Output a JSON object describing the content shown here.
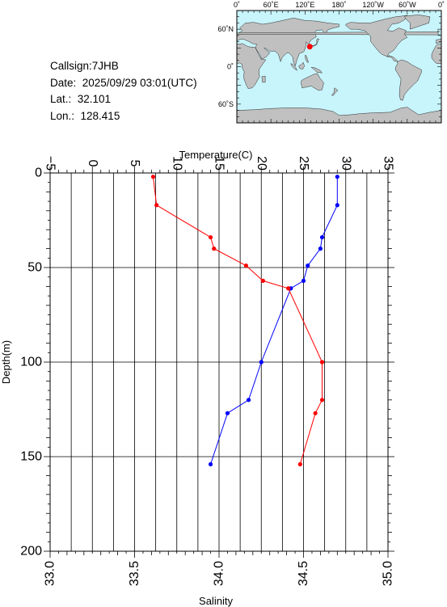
{
  "station": {
    "callsign": "Callsign:7JHB",
    "date": "Date:  2025/09/29 03:01(UTC)",
    "lat": "Lat.:  32.101",
    "lon": "Lon.:  128.415"
  },
  "map": {
    "top_labels": [
      "0˚",
      "60˚E",
      "120˚E",
      "180˚",
      "120˚W",
      "60˚W",
      "0˚"
    ],
    "left_labels": [
      "60˚N",
      "0˚",
      "60˚S"
    ],
    "marker_lat": 32.101,
    "marker_lon": 128.415,
    "ocean_color": "#c8f4fb",
    "land_color": "#c0c0c0",
    "marker_color": "#ff0000"
  },
  "chart_data": {
    "type": "line",
    "title": "",
    "xlabel_top": "Temperature(C)",
    "xlabel_bottom": "Salinity",
    "ylabel": "Depth(m)",
    "temperature_ticks": [
      "−5",
      "0",
      "5",
      "10",
      "15",
      "20",
      "25",
      "30",
      "35"
    ],
    "salinity_ticks": [
      "33.0",
      "33.5",
      "34.0",
      "34.5",
      "35.0"
    ],
    "depth_ticks": [
      "0",
      "50",
      "100",
      "150",
      "200"
    ],
    "temperature_range": [
      -5,
      35
    ],
    "salinity_range": [
      33.0,
      35.0
    ],
    "depth_range": [
      0,
      200
    ],
    "grid": true,
    "series": [
      {
        "axis": "temperature",
        "color": "#0000ff",
        "points": [
          [
            29.0,
            2
          ],
          [
            29.0,
            17
          ],
          [
            27.2,
            34
          ],
          [
            27.0,
            40
          ],
          [
            25.5,
            49
          ],
          [
            25.0,
            57
          ],
          [
            23.5,
            61
          ],
          [
            20.0,
            100
          ],
          [
            18.5,
            120
          ],
          [
            16.0,
            127
          ],
          [
            14.0,
            154
          ]
        ]
      },
      {
        "axis": "salinity",
        "color": "#ff0000",
        "points": [
          [
            33.61,
            2
          ],
          [
            33.63,
            17
          ],
          [
            33.95,
            34
          ],
          [
            33.97,
            40
          ],
          [
            34.16,
            49
          ],
          [
            34.26,
            57
          ],
          [
            34.41,
            61
          ],
          [
            34.61,
            100
          ],
          [
            34.61,
            120
          ],
          [
            34.57,
            127
          ],
          [
            34.48,
            154
          ]
        ]
      }
    ]
  }
}
